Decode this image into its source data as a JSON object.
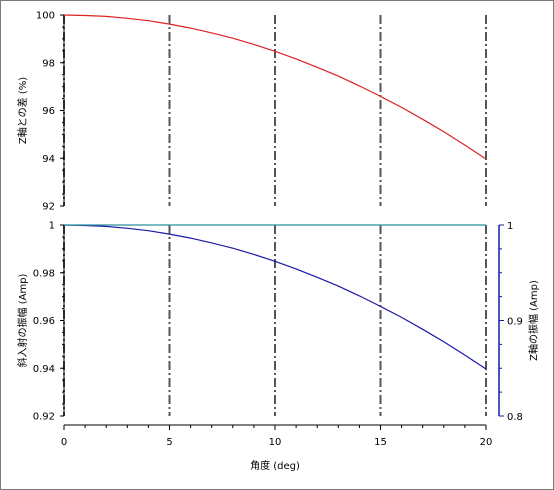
{
  "chart_data": [
    {
      "type": "line",
      "ylabel": "Z軸との差 (%)",
      "ylim": [
        92,
        100
      ],
      "yticks": [
        92,
        94,
        96,
        98,
        100
      ],
      "xlim": [
        0,
        20
      ],
      "vlines": [
        0,
        5,
        10,
        15,
        20
      ],
      "series": [
        {
          "color": "#dd2222",
          "x": [
            0,
            1,
            2,
            3,
            4,
            5,
            6,
            7,
            8,
            9,
            10,
            11,
            12,
            13,
            14,
            15,
            16,
            17,
            18,
            19,
            20
          ],
          "y": [
            100,
            99.98,
            99.94,
            99.86,
            99.76,
            99.62,
            99.45,
            99.25,
            99.03,
            98.77,
            98.48,
            98.16,
            97.81,
            97.44,
            97.03,
            96.59,
            96.13,
            95.63,
            95.11,
            94.55,
            93.97
          ]
        }
      ]
    },
    {
      "type": "line",
      "ylabel": "斜入射の振幅 (Amp)",
      "y2label": "Z軸の振幅 (Amp)",
      "xlabel": "角度 (deg)",
      "xlim": [
        0,
        20
      ],
      "xticks": [
        0,
        5,
        10,
        15,
        20
      ],
      "ylim": [
        0.92,
        1
      ],
      "yticks": [
        0.92,
        0.94,
        0.96,
        0.98,
        1
      ],
      "y2lim": [
        0.8,
        1
      ],
      "y2ticks": [
        0.8,
        0.9,
        1
      ],
      "vlines": [
        0,
        5,
        10,
        15,
        20
      ],
      "series": [
        {
          "color": "#1a1aa8",
          "axis": "left",
          "x": [
            0,
            1,
            2,
            3,
            4,
            5,
            6,
            7,
            8,
            9,
            10,
            11,
            12,
            13,
            14,
            15,
            16,
            17,
            18,
            19,
            20
          ],
          "y": [
            1,
            0.9998,
            0.9994,
            0.9986,
            0.9976,
            0.9962,
            0.9945,
            0.9925,
            0.9903,
            0.9877,
            0.9848,
            0.9816,
            0.9781,
            0.9744,
            0.9703,
            0.9659,
            0.9613,
            0.9563,
            0.9511,
            0.9455,
            0.9397
          ]
        },
        {
          "color": "#2a8f9a",
          "axis": "right",
          "x": [
            0,
            20
          ],
          "y": [
            1,
            1
          ]
        }
      ]
    }
  ]
}
